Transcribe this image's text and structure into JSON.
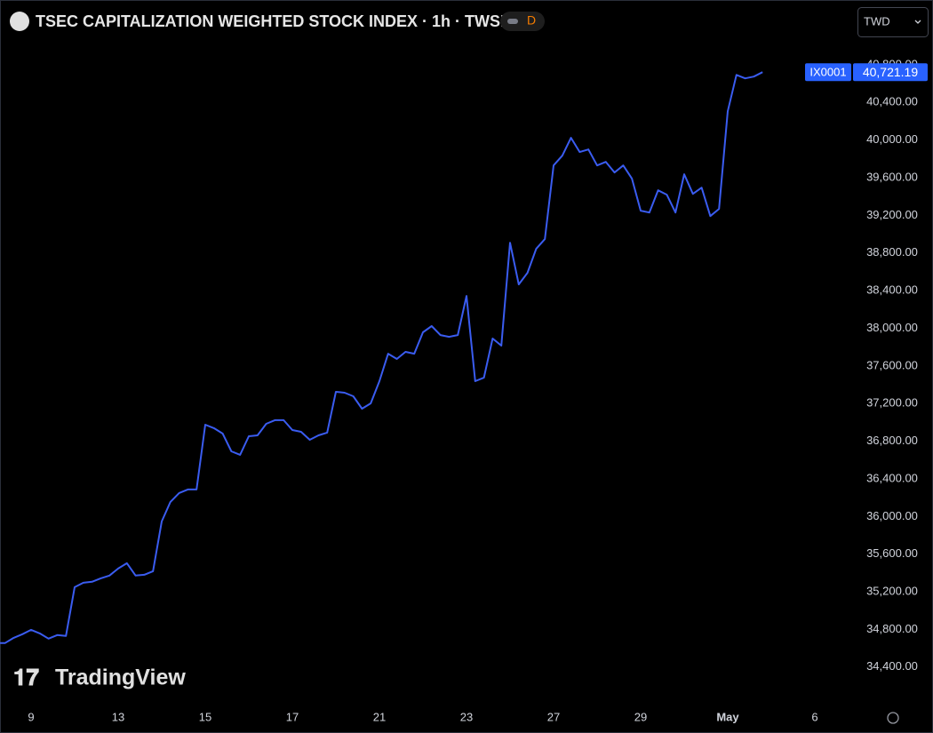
{
  "chart_data": {
    "type": "line",
    "title": "TSEC CAPITALIZATION WEIGHTED STOCK INDEX · 1h · TWSE",
    "badge": "D",
    "currency": "TWD",
    "symbol": "IX0001",
    "price_label": "40,721.19",
    "watermark": "TradingView",
    "color": "#3a5cf0",
    "grid": false,
    "categories": [
      null,
      null,
      null,
      null,
      "9",
      null,
      null,
      null,
      null,
      null,
      null,
      null,
      null,
      null,
      "13",
      null,
      null,
      null,
      null,
      null,
      null,
      null,
      null,
      null,
      "15",
      null,
      null,
      null,
      null,
      null,
      null,
      null,
      null,
      null,
      "17",
      null,
      null,
      null,
      null,
      null,
      null,
      null,
      null,
      null,
      "21",
      null,
      null,
      null,
      null,
      null,
      null,
      null,
      null,
      null,
      "23",
      null,
      null,
      null,
      null,
      null,
      null,
      null,
      null,
      null,
      "27",
      null,
      null,
      null,
      null,
      null,
      null,
      null,
      null,
      null,
      "29",
      null,
      null,
      null,
      null,
      null,
      null,
      null,
      null,
      null,
      "May",
      null,
      null,
      null,
      null,
      null,
      null,
      null,
      null,
      null,
      "6"
    ],
    "values": [
      34655,
      34655,
      34711,
      34749,
      34796,
      34758,
      34702,
      34740,
      34730,
      35249,
      35296,
      35306,
      35343,
      35372,
      35447,
      35504,
      35372,
      35381,
      35419,
      35947,
      36155,
      36249,
      36287,
      36287,
      36975,
      36938,
      36881,
      36692,
      36655,
      36853,
      36862,
      36985,
      37023,
      37023,
      36919,
      36900,
      36815,
      36862,
      36891,
      37325,
      37315,
      37277,
      37145,
      37202,
      37438,
      37730,
      37674,
      37749,
      37730,
      37957,
      38023,
      37928,
      37909,
      37928,
      38343,
      37438,
      37475,
      37891,
      37815,
      38909,
      38466,
      38589,
      38843,
      38947,
      39730,
      39834,
      40023,
      39872,
      39900,
      39730,
      39768,
      39655,
      39730,
      39589,
      39249,
      39230,
      39466,
      39419,
      39230,
      39636,
      39428,
      39494,
      39192,
      39268,
      40306,
      40692,
      40655,
      40674,
      40721.19,
      null,
      null,
      null,
      null,
      null,
      null
    ],
    "ylim": [
      34030,
      41110
    ],
    "yticks": [
      {
        "value": 34400,
        "label": "34,400.00"
      },
      {
        "value": 34800,
        "label": "34,800.00"
      },
      {
        "value": 35200,
        "label": "35,200.00"
      },
      {
        "value": 35600,
        "label": "35,600.00"
      },
      {
        "value": 36000,
        "label": "36,000.00"
      },
      {
        "value": 36400,
        "label": "36,400.00"
      },
      {
        "value": 36800,
        "label": "36,800.00"
      },
      {
        "value": 37200,
        "label": "37,200.00"
      },
      {
        "value": 37600,
        "label": "37,600.00"
      },
      {
        "value": 38000,
        "label": "38,000.00"
      },
      {
        "value": 38400,
        "label": "38,400.00"
      },
      {
        "value": 38800,
        "label": "38,800.00"
      },
      {
        "value": 39200,
        "label": "39,200.00"
      },
      {
        "value": 39600,
        "label": "39,600.00"
      },
      {
        "value": 40000,
        "label": "40,000.00"
      },
      {
        "value": 40400,
        "label": "40,400.00"
      },
      {
        "value": 40800,
        "label": "40,800.00"
      }
    ]
  }
}
